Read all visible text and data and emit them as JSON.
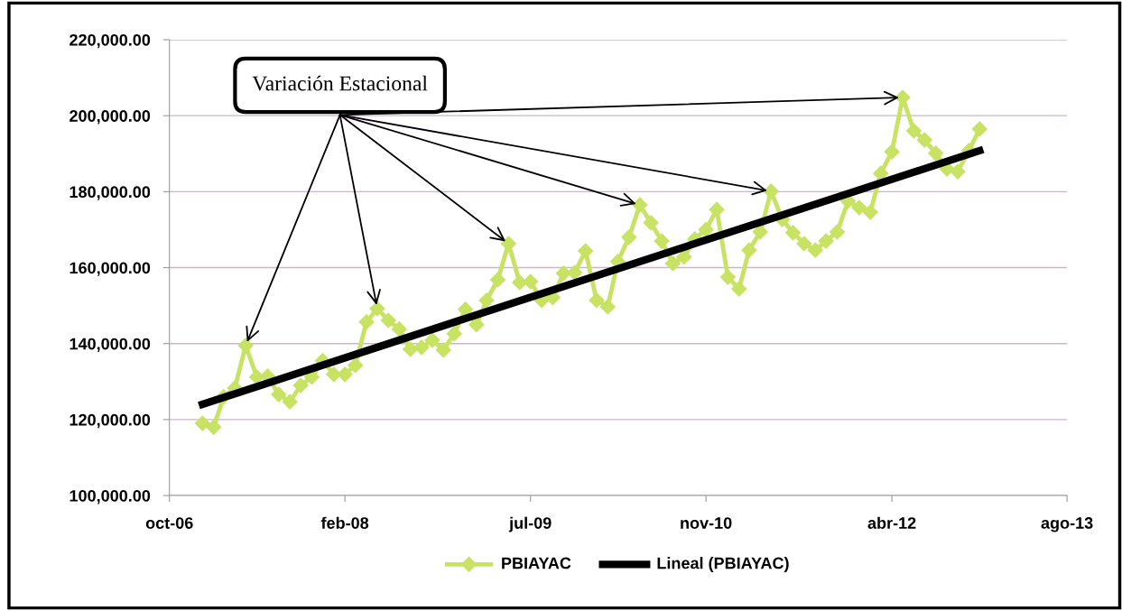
{
  "chart_data": {
    "type": "line",
    "x": [
      "2007-01",
      "2007-02",
      "2007-03",
      "2007-04",
      "2007-05",
      "2007-06",
      "2007-07",
      "2007-08",
      "2007-09",
      "2007-10",
      "2007-11",
      "2007-12",
      "2008-01",
      "2008-02",
      "2008-03",
      "2008-04",
      "2008-05",
      "2008-06",
      "2008-07",
      "2008-08",
      "2008-09",
      "2008-10",
      "2008-11",
      "2008-12",
      "2009-01",
      "2009-02",
      "2009-03",
      "2009-04",
      "2009-05",
      "2009-06",
      "2009-07",
      "2009-08",
      "2009-09",
      "2009-10",
      "2009-11",
      "2009-12",
      "2010-01",
      "2010-02",
      "2010-03",
      "2010-04",
      "2010-05",
      "2010-06",
      "2010-07",
      "2010-08",
      "2010-09",
      "2010-10",
      "2010-11",
      "2010-12",
      "2011-01",
      "2011-02",
      "2011-03",
      "2011-04",
      "2011-05",
      "2011-06",
      "2011-07",
      "2011-08",
      "2011-09",
      "2011-10",
      "2011-11",
      "2011-12",
      "2012-01",
      "2012-02",
      "2012-03",
      "2012-04",
      "2012-05",
      "2012-06",
      "2012-07",
      "2012-08",
      "2012-09",
      "2012-10",
      "2012-11",
      "2012-12"
    ],
    "series": [
      {
        "name": "PBIAYAC",
        "color": "#c8e264",
        "marker": "diamond",
        "values": [
          119000,
          118000,
          126000,
          128300,
          139500,
          131200,
          131400,
          126600,
          124700,
          129000,
          131200,
          135500,
          131900,
          131900,
          134300,
          145700,
          149200,
          146100,
          143800,
          138500,
          139000,
          140900,
          138300,
          142600,
          149000,
          145000,
          151400,
          156800,
          166300,
          156100,
          156300,
          151400,
          152100,
          158500,
          158700,
          164400,
          151400,
          149700,
          161600,
          168000,
          176500,
          171800,
          167000,
          161100,
          162800,
          167500,
          170000,
          175300,
          157500,
          154400,
          164600,
          169400,
          180100,
          172700,
          169200,
          166300,
          164600,
          167000,
          169400,
          177500,
          175800,
          174600,
          184800,
          190500,
          204800,
          196000,
          193600,
          190100,
          186000,
          185300,
          190800,
          196500
        ]
      },
      {
        "name": "Lineal (PBIAYAC)",
        "color": "#000000",
        "marker": "none",
        "x": [
          "2007-01",
          "2012-12"
        ],
        "values": [
          124000,
          190800
        ]
      }
    ],
    "annotations": [
      {
        "text": "Variación Estacional",
        "x": "2007-05",
        "y": 139500
      }
    ],
    "xlim": [
      "2006-10",
      "2013-08"
    ],
    "xticks": [
      {
        "value": "2006-10",
        "label": "oct-06"
      },
      {
        "value": "2008-02",
        "label": "feb-08"
      },
      {
        "value": "2009-07",
        "label": "jul-09"
      },
      {
        "value": "2010-11",
        "label": "nov-10"
      },
      {
        "value": "2012-04",
        "label": "abr-12"
      },
      {
        "value": "2013-08",
        "label": "ago-13"
      }
    ],
    "ylim": [
      100000,
      220000
    ],
    "yticks": [
      {
        "value": 100000,
        "label": "100,000.00"
      },
      {
        "value": 120000,
        "label": "120,000.00"
      },
      {
        "value": 140000,
        "label": "140,000.00"
      },
      {
        "value": 160000,
        "label": "160,000.00"
      },
      {
        "value": 180000,
        "label": "180,000.00"
      },
      {
        "value": 200000,
        "label": "200,000.00"
      },
      {
        "value": 220000,
        "label": "220,000.00"
      }
    ],
    "grid": "y",
    "legend": "bottom",
    "line_style": "solid"
  }
}
